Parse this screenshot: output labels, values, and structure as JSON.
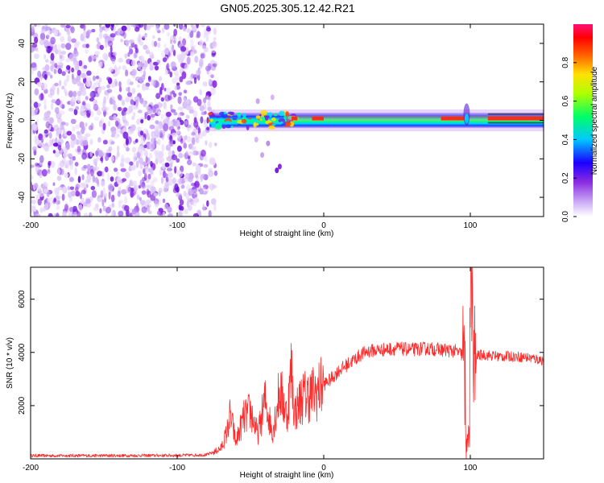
{
  "title": "GN05.2025.305.12.42.R21",
  "chart_data": [
    {
      "type": "heatmap",
      "xlabel": "Height of straight line (km)",
      "ylabel": "Frequency (Hz)",
      "xlim": [
        -200,
        150
      ],
      "ylim": [
        -50,
        50
      ],
      "xticks": [
        -200,
        -100,
        0,
        100
      ],
      "yticks": [
        -40,
        -20,
        0,
        20,
        40
      ],
      "colorbar": {
        "label": "Normalized spectral amplitude",
        "range": [
          0,
          1
        ],
        "ticks": [
          0.0,
          0.2,
          0.4,
          0.6,
          0.8
        ],
        "tick_labels": [
          "0.0",
          "0.2",
          "0.4",
          "0.6",
          "0.8"
        ],
        "colormap": [
          "#ffffff",
          "#8a2be2",
          "#0000ff",
          "#00ffff",
          "#00ff00",
          "#ffff00",
          "#ff8800",
          "#ff0000",
          "#ff1493"
        ]
      },
      "regions": [
        {
          "x": [
            -200,
            -78
          ],
          "y": [
            -50,
            50
          ],
          "description_level": 0.2
        },
        {
          "x": [
            -78,
            150
          ],
          "y": [
            -4,
            4
          ],
          "description_level": 0.45
        },
        {
          "x": [
            -25,
            150
          ],
          "y": [
            0,
            2
          ],
          "description_level": 0.7
        },
        {
          "x": [
            95,
            100
          ],
          "y": [
            -8,
            14
          ],
          "description_level": 0.25
        },
        {
          "x": [
            -33,
            -31
          ],
          "y": [
            -28,
            -24
          ],
          "description_level": 0.2
        }
      ]
    },
    {
      "type": "line",
      "xlabel": "Height of straight line (km)",
      "ylabel": "SNR (10 * v/v)",
      "xlim": [
        -200,
        150
      ],
      "ylim": [
        0,
        7200
      ],
      "xticks": [
        -200,
        -100,
        0,
        100
      ],
      "yticks": [
        2000,
        4000,
        6000
      ],
      "color": "#ff2a2a",
      "x": [
        -200,
        -150,
        -100,
        -80,
        -75,
        -70,
        -66,
        -64,
        -62,
        -60,
        -55,
        -50,
        -45,
        -40,
        -35,
        -30,
        -25,
        -22,
        -20,
        -15,
        -10,
        -5,
        0,
        5,
        10,
        15,
        20,
        25,
        30,
        40,
        50,
        60,
        70,
        80,
        90,
        95,
        98,
        100,
        101,
        102,
        105,
        110,
        120,
        130,
        140,
        150
      ],
      "y": [
        120,
        120,
        130,
        150,
        250,
        400,
        1000,
        1600,
        1200,
        600,
        1500,
        1800,
        900,
        2200,
        1000,
        2600,
        1600,
        3400,
        1700,
        2300,
        2400,
        2500,
        2800,
        3000,
        3300,
        3500,
        3700,
        3900,
        4050,
        4100,
        4150,
        4100,
        4150,
        4100,
        4050,
        3900,
        1000,
        6200,
        6800,
        3200,
        3900,
        3900,
        3850,
        3850,
        3800,
        3700
      ]
    }
  ]
}
